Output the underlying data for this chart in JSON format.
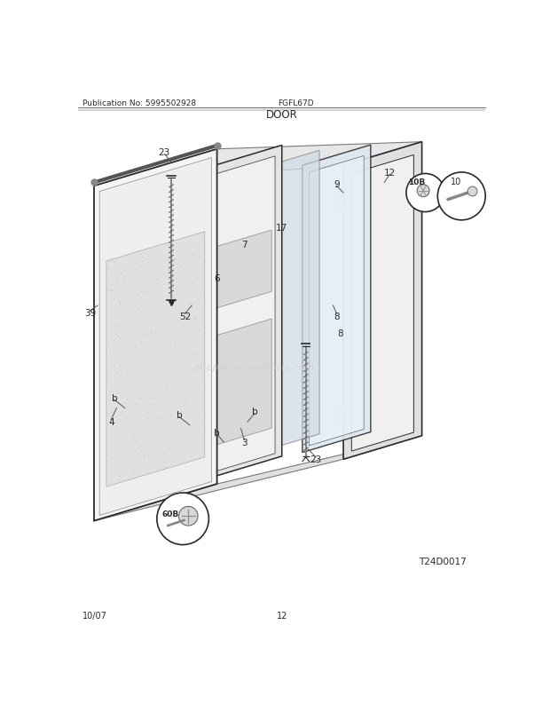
{
  "pub_no": "Publication No: 5995502928",
  "model": "FGFL67D",
  "section": "DOOR",
  "footer_left": "10/07",
  "footer_center": "12",
  "diagram_code": "T24D0017",
  "bg_color": "#ffffff",
  "line_color": "#2a2a2a",
  "gray1": "#e8e8e8",
  "gray2": "#d4d4d4",
  "gray3": "#c0c0c0",
  "gray4": "#b0b0b0",
  "stipple_color": "#bbbbbb",
  "watermark": "eReplacementParts.com"
}
